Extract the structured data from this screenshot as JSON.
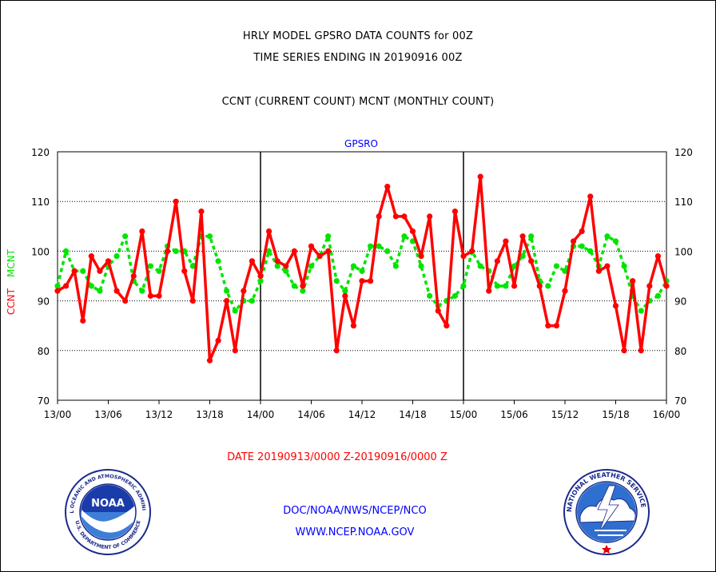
{
  "header": {
    "line1": "HRLY MODEL GPSRO DATA COUNTS for 00Z",
    "line2": "TIME SERIES ENDING IN 20190916 00Z",
    "line3": "CCNT (CURRENT COUNT) MCNT (MONTHLY COUNT)"
  },
  "chart_data": {
    "type": "line",
    "title": "GPSRO",
    "ylabel_left": [
      "CCNT",
      "MCNT"
    ],
    "ylim": [
      70,
      120
    ],
    "yticks": [
      70,
      80,
      90,
      100,
      110,
      120
    ],
    "xlim": [
      0,
      72
    ],
    "xticks": [
      {
        "x": 0,
        "label": "13/00"
      },
      {
        "x": 6,
        "label": "13/06"
      },
      {
        "x": 12,
        "label": "13/12"
      },
      {
        "x": 18,
        "label": "13/18"
      },
      {
        "x": 24,
        "label": "14/00"
      },
      {
        "x": 30,
        "label": "14/06"
      },
      {
        "x": 36,
        "label": "14/12"
      },
      {
        "x": 42,
        "label": "14/18"
      },
      {
        "x": 48,
        "label": "15/00"
      },
      {
        "x": 54,
        "label": "15/06"
      },
      {
        "x": 60,
        "label": "15/12"
      },
      {
        "x": 66,
        "label": "15/18"
      },
      {
        "x": 72,
        "label": "16/00"
      }
    ],
    "day_boundaries": [
      24,
      48
    ],
    "grid": "horizontal dotted",
    "colors": {
      "ccnt": "#ff0000",
      "mcnt": "#00e400",
      "title": "#0000ff",
      "axis_left": "#ff0000",
      "axis_left_2": "#00e400"
    },
    "series": [
      {
        "name": "CCNT",
        "style": "solid",
        "values": [
          92,
          93,
          96,
          86,
          99,
          96,
          98,
          92,
          90,
          95,
          104,
          91,
          91,
          100,
          110,
          96,
          90,
          108,
          78,
          82,
          90,
          80,
          92,
          98,
          95,
          104,
          98,
          97,
          100,
          93,
          101,
          99,
          100,
          80,
          91,
          85,
          94,
          94,
          107,
          113,
          107,
          107,
          104,
          99,
          107,
          88,
          85,
          108,
          99,
          100,
          115,
          92,
          98,
          102,
          93,
          103,
          98,
          93,
          85,
          85,
          92,
          102,
          104,
          111,
          96,
          97,
          89,
          80,
          94,
          80,
          93,
          99,
          93
        ]
      },
      {
        "name": "MCNT",
        "style": "dashed",
        "values": [
          93,
          100,
          96,
          96,
          93,
          92,
          97,
          99,
          103,
          94,
          92,
          97,
          96,
          101,
          100,
          100,
          97,
          103,
          103,
          98,
          92,
          88,
          90,
          90,
          94,
          100,
          97,
          96,
          93,
          92,
          97,
          99,
          103,
          94,
          92,
          97,
          96,
          101,
          101,
          100,
          97,
          103,
          102,
          97,
          91,
          89,
          90,
          91,
          93,
          100,
          97,
          96,
          93,
          93,
          97,
          99,
          103,
          94,
          93,
          97,
          96,
          101,
          101,
          100,
          97,
          103,
          102,
          97,
          91,
          88,
          90,
          91,
          94
        ]
      }
    ]
  },
  "footer": {
    "date_range": "DATE 20190913/0000 Z-20190916/0000 Z",
    "org": "DOC/NOAA/NWS/NCEP/NCO",
    "url": "WWW.NCEP.NOAA.GOV"
  },
  "logos": {
    "noaa": {
      "center_text": "NOAA",
      "ring_top": "NATIONAL OCEANIC AND ATMOSPHERIC ADMINISTRATION",
      "ring_bottom": "U.S. DEPARTMENT OF COMMERCE"
    },
    "nws": {
      "ring_text": "NATIONAL WEATHER SERVICE"
    }
  }
}
